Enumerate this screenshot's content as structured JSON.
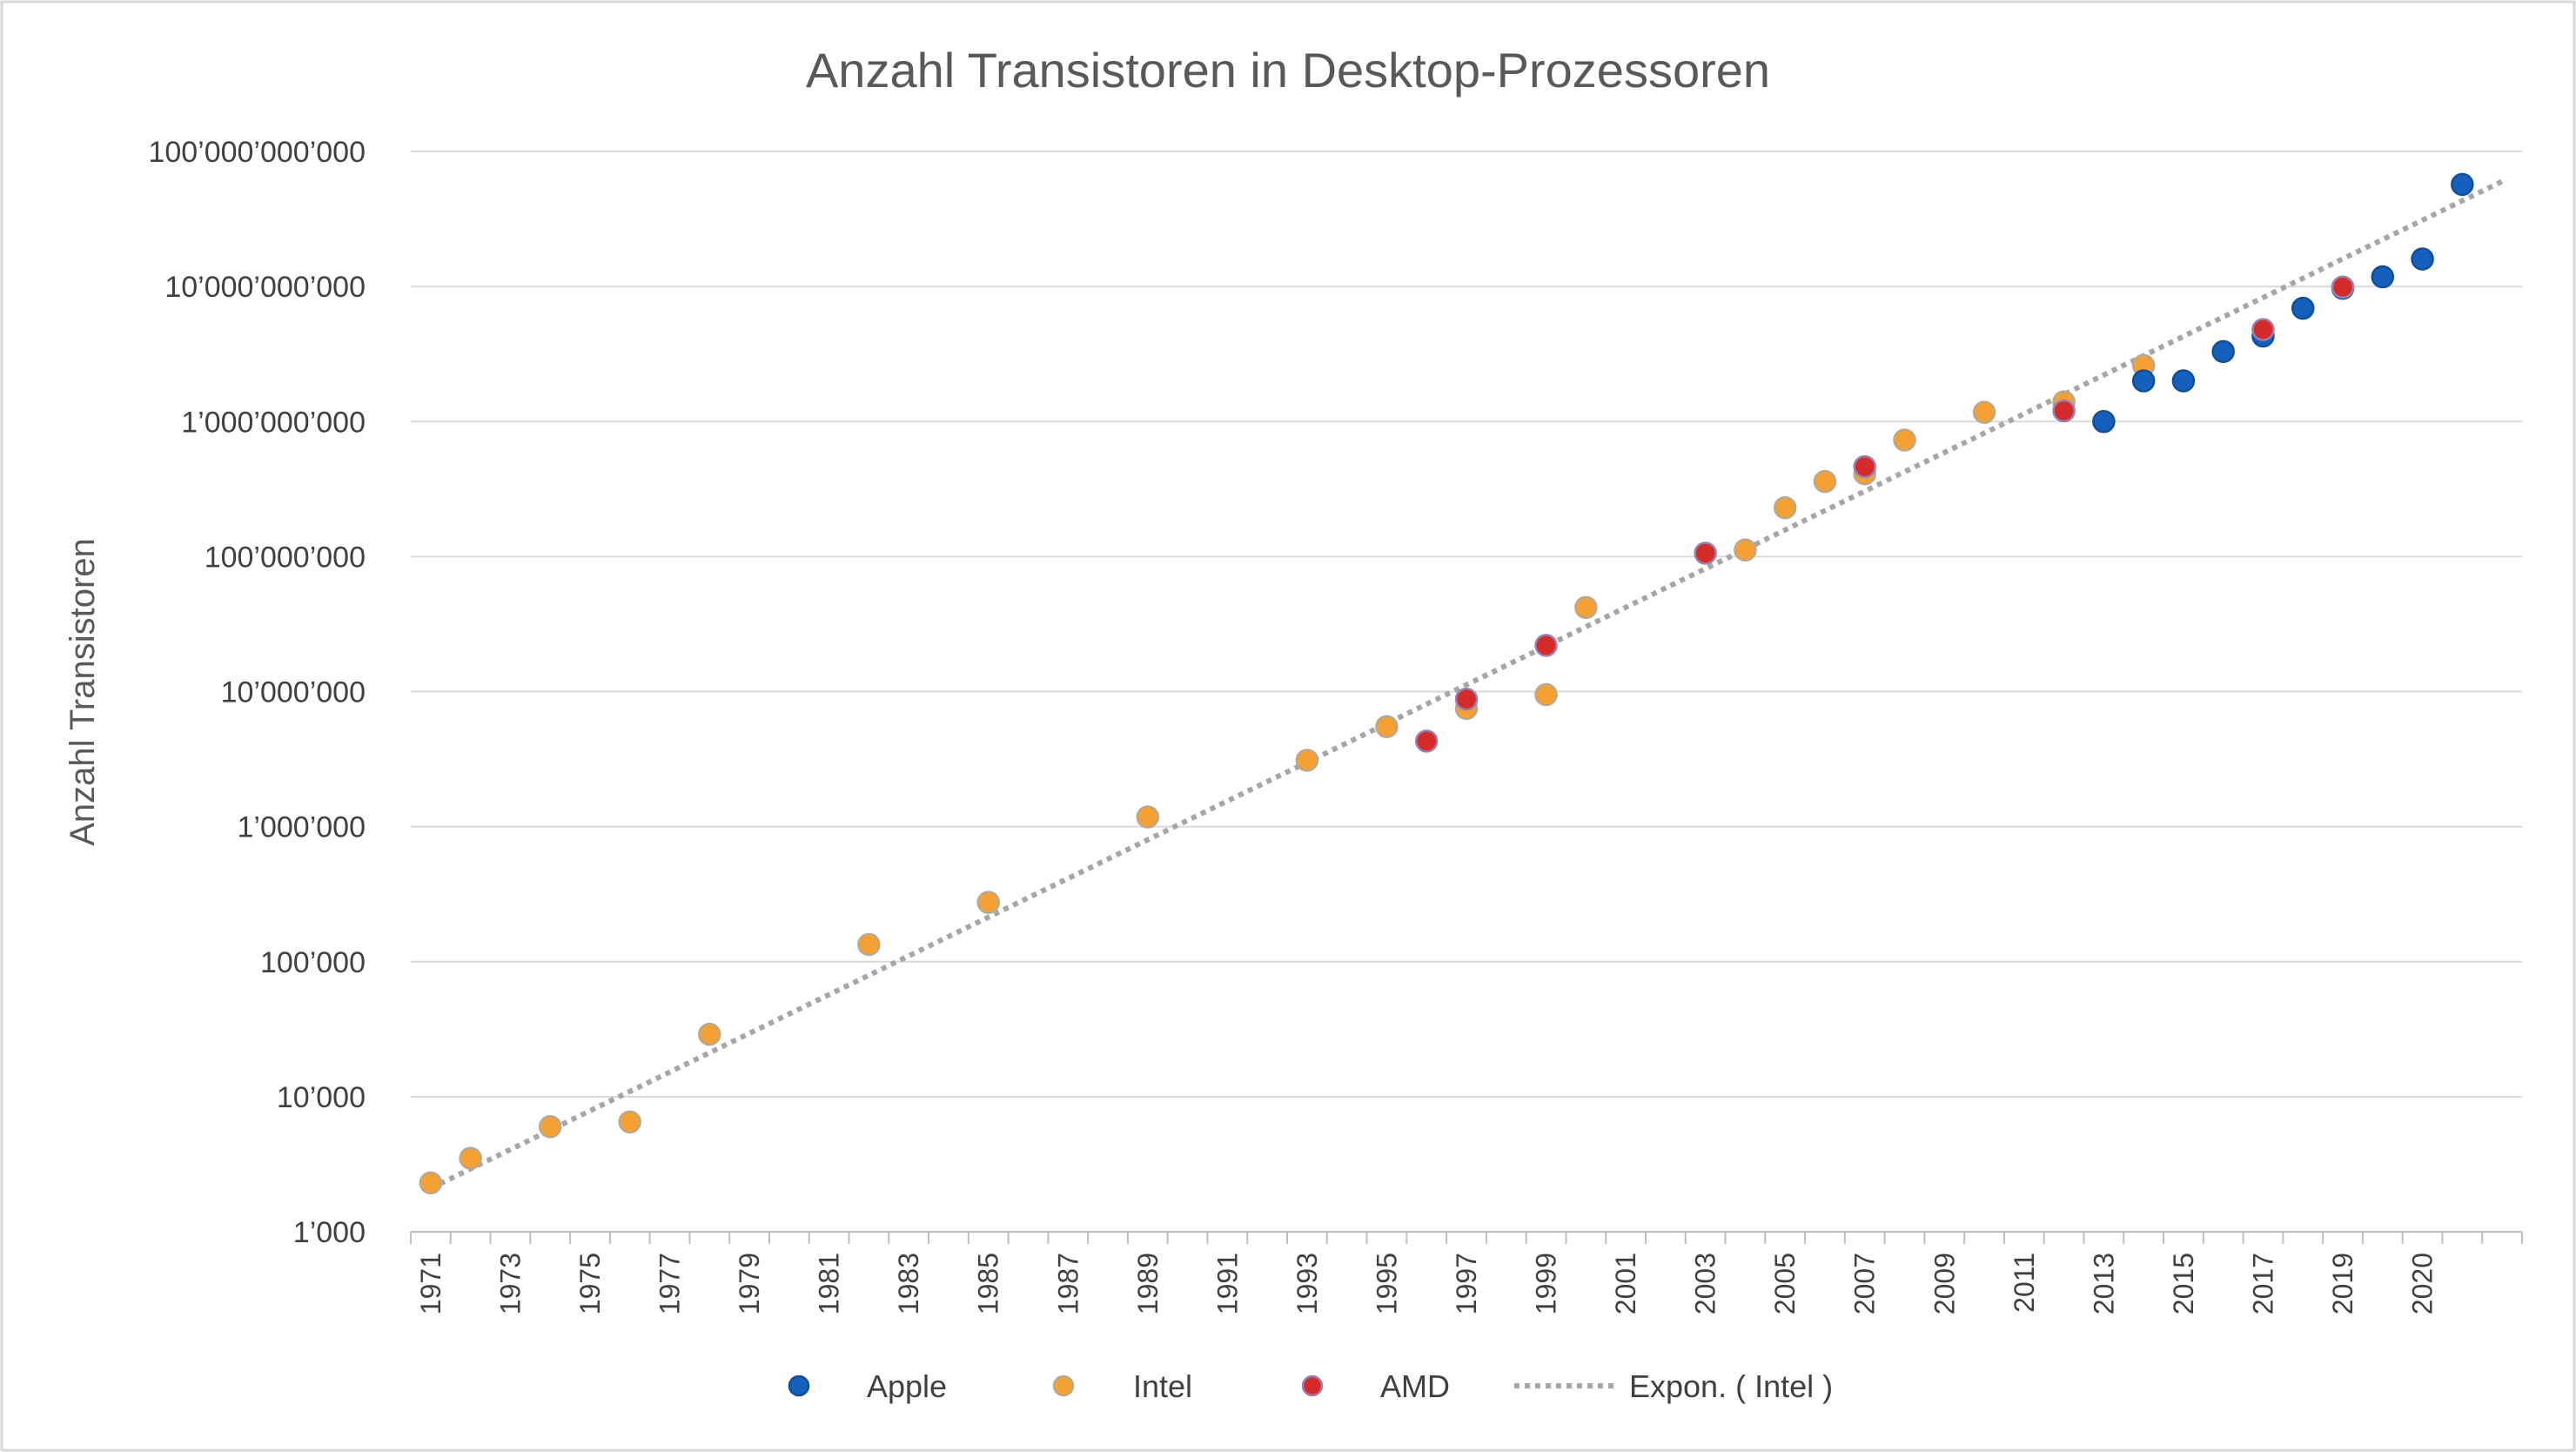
{
  "chart_data": {
    "type": "scatter",
    "title": "Anzahl Transistoren in Desktop-Prozessoren",
    "xlabel": "",
    "ylabel": "Anzahl Transistoren",
    "y_scale": "log",
    "ylim": [
      1000,
      100000000000
    ],
    "y_ticks": [
      {
        "value": 1000,
        "label": "1’000"
      },
      {
        "value": 10000,
        "label": "10’000"
      },
      {
        "value": 100000,
        "label": "100’000"
      },
      {
        "value": 1000000,
        "label": "1’000’000"
      },
      {
        "value": 10000000,
        "label": "10’000’000"
      },
      {
        "value": 100000000,
        "label": "100’000’000"
      },
      {
        "value": 1000000000,
        "label": "1’000’000’000"
      },
      {
        "value": 10000000000,
        "label": "10’000’000’000"
      },
      {
        "value": 100000000000,
        "label": "100’000’000’000"
      }
    ],
    "xlim": [
      1970.5,
      2023.5
    ],
    "x_ticks": [
      "1971",
      "1973",
      "1975",
      "1977",
      "1979",
      "1981",
      "1983",
      "1985",
      "1987",
      "1989",
      "1991",
      "1993",
      "1995",
      "1997",
      "1999",
      "2001",
      "2003",
      "2005",
      "2007",
      "2009",
      "2011",
      "2013",
      "2015",
      "2017",
      "2019",
      "2020"
    ],
    "grid": "horizontal",
    "legend_position": "bottom",
    "series": [
      {
        "name": "Apple",
        "color": "#1560bd",
        "points": [
          {
            "x": 2013,
            "y": 1000000000
          },
          {
            "x": 2014,
            "y": 2000000000
          },
          {
            "x": 2015,
            "y": 2000000000
          },
          {
            "x": 2016,
            "y": 3300000000
          },
          {
            "x": 2017,
            "y": 4300000000
          },
          {
            "x": 2018,
            "y": 6900000000
          },
          {
            "x": 2019,
            "y": 9700000000
          },
          {
            "x": 2020,
            "y": 11800000000
          },
          {
            "x": 2021,
            "y": 16000000000
          },
          {
            "x": 2022,
            "y": 57000000000
          }
        ]
      },
      {
        "name": "Intel",
        "color": "#f5a033",
        "points": [
          {
            "x": 1971,
            "y": 2300
          },
          {
            "x": 1972,
            "y": 3500
          },
          {
            "x": 1974,
            "y": 6000
          },
          {
            "x": 1976,
            "y": 6500
          },
          {
            "x": 1978,
            "y": 29000
          },
          {
            "x": 1982,
            "y": 134000
          },
          {
            "x": 1985,
            "y": 275000
          },
          {
            "x": 1989,
            "y": 1180000
          },
          {
            "x": 1993,
            "y": 3100000
          },
          {
            "x": 1995,
            "y": 5500000
          },
          {
            "x": 1997,
            "y": 7500000
          },
          {
            "x": 1999,
            "y": 9500000
          },
          {
            "x": 2000,
            "y": 42000000
          },
          {
            "x": 2004,
            "y": 112000000
          },
          {
            "x": 2005,
            "y": 230000000
          },
          {
            "x": 2006,
            "y": 360000000
          },
          {
            "x": 2007,
            "y": 410000000
          },
          {
            "x": 2008,
            "y": 730000000
          },
          {
            "x": 2010,
            "y": 1170000000
          },
          {
            "x": 2012,
            "y": 1400000000
          },
          {
            "x": 2014,
            "y": 2600000000
          }
        ]
      },
      {
        "name": "AMD",
        "color": "#d42a2a",
        "points": [
          {
            "x": 1996,
            "y": 4300000
          },
          {
            "x": 1997,
            "y": 8800000
          },
          {
            "x": 1999,
            "y": 22000000
          },
          {
            "x": 2003,
            "y": 105900000
          },
          {
            "x": 2007,
            "y": 463000000
          },
          {
            "x": 2012,
            "y": 1200000000
          },
          {
            "x": 2017,
            "y": 4800000000
          },
          {
            "x": 2019,
            "y": 9900000000
          }
        ]
      }
    ],
    "trendline": {
      "name": "Expon. ( Intel )",
      "type": "exponential",
      "color": "#a6a6a6",
      "start": {
        "x": 1971,
        "y": 2100
      },
      "end": {
        "x": 2023,
        "y": 60000000000
      }
    }
  }
}
